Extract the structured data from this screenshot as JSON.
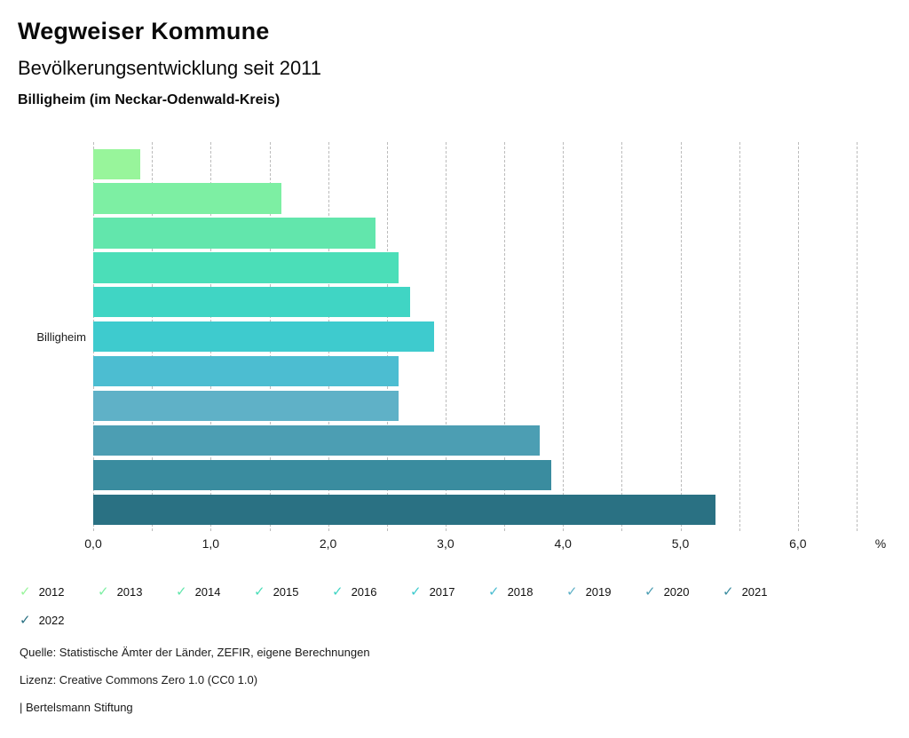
{
  "header": {
    "title": "Wegweiser Kommune",
    "subtitle": "Bevölkerungsentwicklung seit 2011",
    "region": "Billigheim (im Neckar-Odenwald-Kreis)"
  },
  "chart_data": {
    "type": "bar",
    "orientation": "horizontal",
    "title": "Bevölkerungsentwicklung seit 2011",
    "group_label": "Billigheim",
    "unit": "%",
    "categories": [
      "2012",
      "2013",
      "2014",
      "2015",
      "2016",
      "2017",
      "2018",
      "2019",
      "2020",
      "2021",
      "2022"
    ],
    "values": [
      0.4,
      1.6,
      2.4,
      2.6,
      2.7,
      2.9,
      2.6,
      2.6,
      3.8,
      3.9,
      5.3
    ],
    "colors": [
      "#98F59B",
      "#7DEFA3",
      "#62E6AC",
      "#4BDEB8",
      "#40D5C4",
      "#3ECBCE",
      "#4CBDD1",
      "#5FB1C7",
      "#4C9EB3",
      "#3A8C9F",
      "#2A7183"
    ],
    "xlim": [
      0,
      6.5
    ],
    "gridline_step": 0.5,
    "grid": true,
    "x_tick_values": [
      0,
      1,
      2,
      3,
      4,
      5,
      6
    ],
    "x_tick_labels": [
      "0,0",
      "1,0",
      "2,0",
      "3,0",
      "4,0",
      "5,0",
      "6,0"
    ],
    "legend_position": "bottom",
    "legend_check_icon": "✓"
  },
  "footer": {
    "source": "Quelle: Statistische Ämter der Länder, ZEFIR, eigene Berechnungen",
    "license": "Lizenz: Creative Commons Zero 1.0 (CC0 1.0)",
    "attribution": "| Bertelsmann Stiftung"
  }
}
